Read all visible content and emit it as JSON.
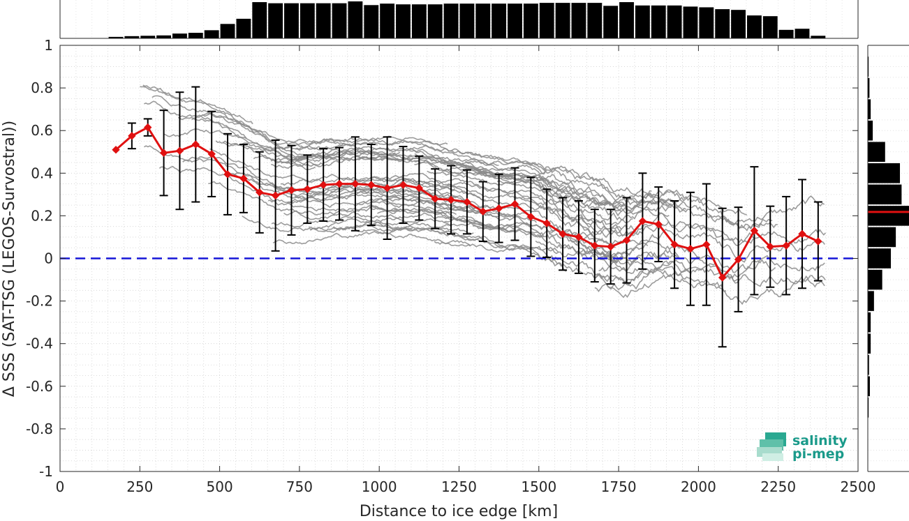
{
  "chart_data": {
    "type": "line",
    "title": "",
    "xlabel": "Distance to ice edge [km]",
    "ylabel": "Δ SSS (SAT-TSG (LEGOS-Survostral))",
    "xlim": [
      0,
      2500
    ],
    "ylim": [
      -1,
      1
    ],
    "x_ticks": [
      "0",
      "250",
      "500",
      "750",
      "1000",
      "1250",
      "1500",
      "1750",
      "2000",
      "2250",
      "2500"
    ],
    "y_ticks": [
      "-1",
      "-0.8",
      "-0.6",
      "-0.4",
      "-0.2",
      "0",
      "0.2",
      "0.4",
      "0.6",
      "0.8",
      "1"
    ],
    "grid": "dotted minor grid on",
    "reference_line": {
      "y": 0,
      "style": "dashed",
      "color": "#1515d8"
    },
    "mean_series": {
      "color": "#e01010",
      "x": [
        175,
        225,
        275,
        325,
        375,
        425,
        475,
        525,
        575,
        625,
        675,
        725,
        775,
        825,
        875,
        925,
        975,
        1025,
        1075,
        1125,
        1175,
        1225,
        1275,
        1325,
        1375,
        1425,
        1475,
        1525,
        1575,
        1625,
        1675,
        1725,
        1775,
        1825,
        1875,
        1925,
        1975,
        2025,
        2075,
        2125,
        2175,
        2225,
        2275,
        2325,
        2375
      ],
      "y": [
        0.51,
        0.575,
        0.615,
        0.495,
        0.505,
        0.535,
        0.49,
        0.395,
        0.375,
        0.31,
        0.295,
        0.32,
        0.325,
        0.345,
        0.35,
        0.35,
        0.345,
        0.33,
        0.345,
        0.33,
        0.28,
        0.275,
        0.265,
        0.22,
        0.235,
        0.255,
        0.195,
        0.165,
        0.115,
        0.1,
        0.06,
        0.055,
        0.085,
        0.175,
        0.16,
        0.065,
        0.045,
        0.065,
        -0.09,
        -0.005,
        0.13,
        0.055,
        0.06,
        0.115,
        0.08
      ],
      "std": [
        0.0,
        0.06,
        0.04,
        0.2,
        0.275,
        0.27,
        0.2,
        0.19,
        0.16,
        0.19,
        0.26,
        0.21,
        0.16,
        0.17,
        0.17,
        0.22,
        0.19,
        0.24,
        0.18,
        0.15,
        0.14,
        0.16,
        0.15,
        0.14,
        0.16,
        0.17,
        0.185,
        0.16,
        0.17,
        0.17,
        0.17,
        0.175,
        0.2,
        0.225,
        0.175,
        0.205,
        0.265,
        0.285,
        0.325,
        0.245,
        0.3,
        0.19,
        0.23,
        0.255,
        0.185
      ]
    },
    "top_histogram": {
      "color": "#000000",
      "bin_centers": [
        125,
        175,
        225,
        275,
        325,
        375,
        425,
        475,
        525,
        575,
        625,
        675,
        725,
        775,
        825,
        875,
        925,
        975,
        1025,
        1075,
        1125,
        1175,
        1225,
        1275,
        1325,
        1375,
        1425,
        1475,
        1525,
        1575,
        1625,
        1675,
        1725,
        1775,
        1825,
        1875,
        1925,
        1975,
        2025,
        2075,
        2125,
        2175,
        2225,
        2275,
        2325,
        2375
      ],
      "relative_counts": [
        0.0,
        0.04,
        0.06,
        0.07,
        0.08,
        0.13,
        0.15,
        0.22,
        0.39,
        0.53,
        0.98,
        0.95,
        0.95,
        0.95,
        0.95,
        0.95,
        1.0,
        0.9,
        0.94,
        0.92,
        0.92,
        0.92,
        0.94,
        0.94,
        0.94,
        0.94,
        0.94,
        0.94,
        0.96,
        0.96,
        0.96,
        0.96,
        0.88,
        0.98,
        0.89,
        0.89,
        0.89,
        0.86,
        0.84,
        0.79,
        0.77,
        0.62,
        0.6,
        0.23,
        0.26,
        0.07
      ]
    },
    "side_histogram": {
      "color": "#000000",
      "mean_marker": {
        "y": 0.218,
        "color": "#e01010"
      },
      "bin_centers": [
        0.9,
        0.8,
        0.7,
        0.6,
        0.5,
        0.4,
        0.3,
        0.2,
        0.1,
        0.0,
        -0.1,
        -0.2,
        -0.3,
        -0.4,
        -0.5,
        -0.6,
        -0.7
      ],
      "relative_counts": [
        0.02,
        0.04,
        0.07,
        0.12,
        0.42,
        0.78,
        0.82,
        1.0,
        0.68,
        0.56,
        0.35,
        0.15,
        0.07,
        0.07,
        0.03,
        0.05,
        0.02
      ]
    },
    "scatter_traces": {
      "color": "#8a8a8a",
      "description": "many individual grey along-track transect curves"
    }
  },
  "logo": {
    "line1": "salinity",
    "line2": "pi-mep",
    "color": "#1a9a8a"
  }
}
